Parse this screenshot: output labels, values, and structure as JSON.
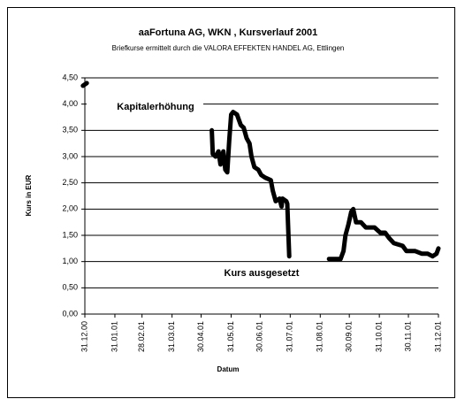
{
  "chart_data": {
    "type": "line",
    "title": "aaFortuna AG, WKN , Kursverlauf 2001",
    "subtitle": "Briefkurse ermittelt durch die VALORA EFFEKTEN HANDEL AG, Ettlingen",
    "xlabel": "Datum",
    "ylabel": "Kurs in EUR",
    "annotations": [
      "Kapitalerhöhung",
      "Kurs ausgesetzt"
    ],
    "xlim": [
      "31.12.00",
      "31.12.01"
    ],
    "xticks": [
      "31.12.00",
      "31.01.01",
      "28.02.01",
      "31.03.01",
      "30.04.01",
      "31.05.01",
      "30.06.01",
      "31.07.01",
      "31.08.01",
      "30.09.01",
      "31.10.01",
      "30.11.01",
      "31.12.01"
    ],
    "ylim": [
      0,
      4.5
    ],
    "yticks": [
      {
        "value": 0,
        "label": "0,00"
      },
      {
        "value": 0.5,
        "label": "0,50"
      },
      {
        "value": 1,
        "label": "1,00"
      },
      {
        "value": 1.5,
        "label": "1,50"
      },
      {
        "value": 2,
        "label": "2,00"
      },
      {
        "value": 2.5,
        "label": "2,50"
      },
      {
        "value": 3,
        "label": "3,00"
      },
      {
        "value": 3.5,
        "label": "3,50"
      },
      {
        "value": 4,
        "label": "4,00"
      },
      {
        "value": 4.5,
        "label": "4,50"
      }
    ],
    "grid": true,
    "series": [
      {
        "name": "Kurs",
        "color": "#000000",
        "x": [
          "29.12.00",
          "02.01.01",
          "01.03.01",
          "11.05.01",
          "12.05.01",
          "15.05.01",
          "18.05.01",
          "20.05.01",
          "23.05.01",
          "25.05.01",
          "27.05.01",
          "29.05.01",
          "31.05.01",
          "02.06.01",
          "06.06.01",
          "10.06.01",
          "13.06.01",
          "16.06.01",
          "19.06.01",
          "21.06.01",
          "24.06.01",
          "28.06.01",
          "01.07.01",
          "05.07.01",
          "11.07.01",
          "13.07.01",
          "16.07.01",
          "20.07.01",
          "22.07.01",
          "23.07.01",
          "27.07.01",
          "28.07.01",
          "30.07.01",
          "20.08.01",
          "09.09.01",
          "21.09.01",
          "24.09.01",
          "26.09.01",
          "29.09.01",
          "02.10.01",
          "04.10.01",
          "07.10.01",
          "12.10.01",
          "17.10.01",
          "26.10.01",
          "01.11.01",
          "06.11.01",
          "10.11.01",
          "15.11.01",
          "24.11.01",
          "28.11.01",
          "07.12.01",
          "14.12.01",
          "20.12.01",
          "25.12.01",
          "29.12.01",
          "31.12.01"
        ],
        "values": [
          4.35,
          4.4,
          null,
          3.5,
          3.05,
          3.0,
          3.1,
          2.85,
          3.1,
          2.75,
          2.7,
          3.3,
          3.8,
          3.85,
          3.8,
          3.6,
          3.55,
          3.35,
          3.25,
          3.0,
          2.8,
          2.75,
          2.65,
          2.6,
          2.55,
          2.35,
          2.15,
          2.2,
          2.05,
          2.2,
          2.15,
          2.1,
          1.1,
          null,
          1.05,
          1.05,
          1.2,
          1.5,
          1.7,
          1.95,
          2.0,
          1.75,
          1.75,
          1.65,
          1.65,
          1.55,
          1.55,
          1.45,
          1.35,
          1.3,
          1.2,
          1.2,
          1.15,
          1.15,
          1.1,
          1.15,
          1.25
        ]
      }
    ]
  }
}
